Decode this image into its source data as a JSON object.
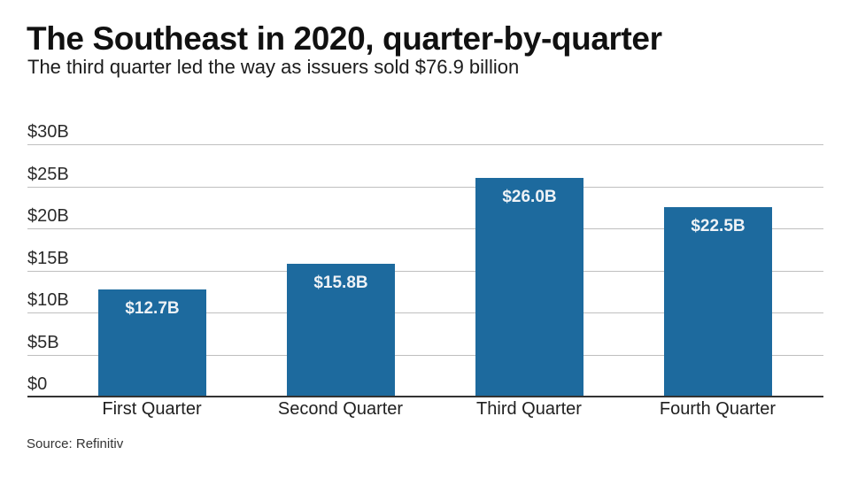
{
  "chart_data": {
    "type": "bar",
    "title": "The Southeast in 2020, quarter-by-quarter",
    "subtitle": "The third quarter led the way as issuers sold $76.9 billion",
    "categories": [
      "First Quarter",
      "Second Quarter",
      "Third Quarter",
      "Fourth Quarter"
    ],
    "values": [
      12.7,
      15.8,
      26.0,
      22.5
    ],
    "bar_labels": [
      "$12.7B",
      "$15.8B",
      "$26.0B",
      "$22.5B"
    ],
    "xlabel": "",
    "ylabel": "",
    "ylim": [
      0,
      30
    ],
    "yticks": [
      {
        "value": 0,
        "label": "$0"
      },
      {
        "value": 5,
        "label": "$5B"
      },
      {
        "value": 10,
        "label": "$10B"
      },
      {
        "value": 15,
        "label": "$15B"
      },
      {
        "value": 20,
        "label": "$20B"
      },
      {
        "value": 25,
        "label": "$25B"
      },
      {
        "value": 30,
        "label": "$30B"
      }
    ],
    "grid": true,
    "legend": false,
    "colors": {
      "bar": "#1d6a9e",
      "bar_value_label": "#eef2f6",
      "gridline": "#bfbfbf",
      "baseline": "#333333",
      "tick_label": "#2b2b2b"
    }
  },
  "footer": {
    "source": "Source: Refinitiv"
  }
}
